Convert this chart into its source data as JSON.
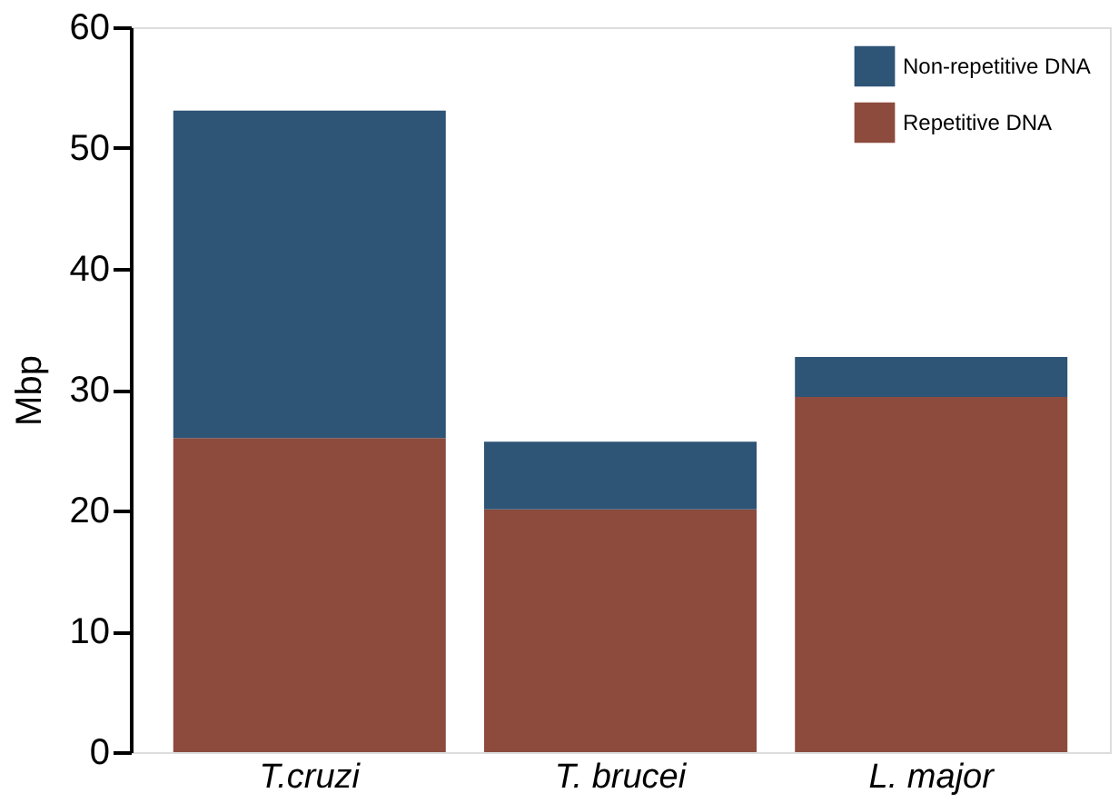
{
  "chart_data": {
    "type": "bar",
    "stacked": true,
    "ylabel": "Mbp",
    "categories": [
      "T.cruzi",
      "T. brucei",
      "L. major"
    ],
    "series": [
      {
        "name": "Repetitive DNA",
        "color": "#8c4b3d",
        "values": [
          26.0,
          20.1,
          29.4
        ]
      },
      {
        "name": "Non-repetitive DNA",
        "color": "#2e5476",
        "values": [
          27.1,
          5.6,
          3.3
        ]
      }
    ],
    "ylim": [
      0,
      60
    ],
    "yticks": [
      0,
      10,
      20,
      30,
      40,
      50,
      60
    ],
    "grid": false,
    "legend": "top right"
  }
}
